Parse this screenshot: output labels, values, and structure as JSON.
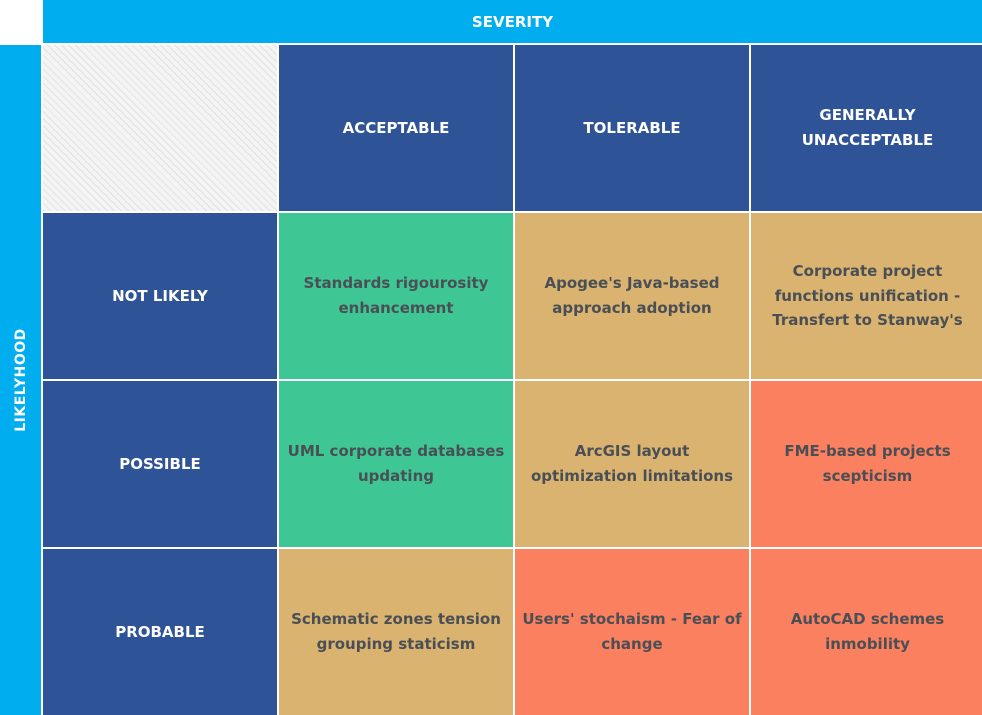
{
  "title": "SEVERITY",
  "side_label": "LIKELYHOOD",
  "colors": {
    "header_bar": "#00aeef",
    "header_cell": "#2e5396",
    "acceptable": "#3ec795",
    "tolerable": "#d9b36f",
    "unacceptable": "#fb805f"
  },
  "columns": [
    "ACCEPTABLE",
    "TOLERABLE",
    "GENERALLY UNACCEPTABLE"
  ],
  "rows": [
    {
      "label": "NOT LIKELY",
      "cells": [
        {
          "text": "Standards rigourosity enhancement",
          "level": "acceptable"
        },
        {
          "text": "Apogee's Java-based approach adoption",
          "level": "tolerable"
        },
        {
          "text": "Corporate project functions unification - Transfert to Stanway's",
          "level": "tolerable"
        }
      ]
    },
    {
      "label": "POSSIBLE",
      "cells": [
        {
          "text": "UML corporate databases updating",
          "level": "acceptable"
        },
        {
          "text": "ArcGIS layout optimization limitations",
          "level": "tolerable"
        },
        {
          "text": "FME-based projects scepticism",
          "level": "unacceptable"
        }
      ]
    },
    {
      "label": "PROBABLE",
      "cells": [
        {
          "text": "Schematic zones tension grouping staticism",
          "level": "tolerable"
        },
        {
          "text": "Users' stochaism - Fear of change",
          "level": "unacceptable"
        },
        {
          "text": "AutoCAD schemes inmobility",
          "level": "unacceptable"
        }
      ]
    }
  ]
}
